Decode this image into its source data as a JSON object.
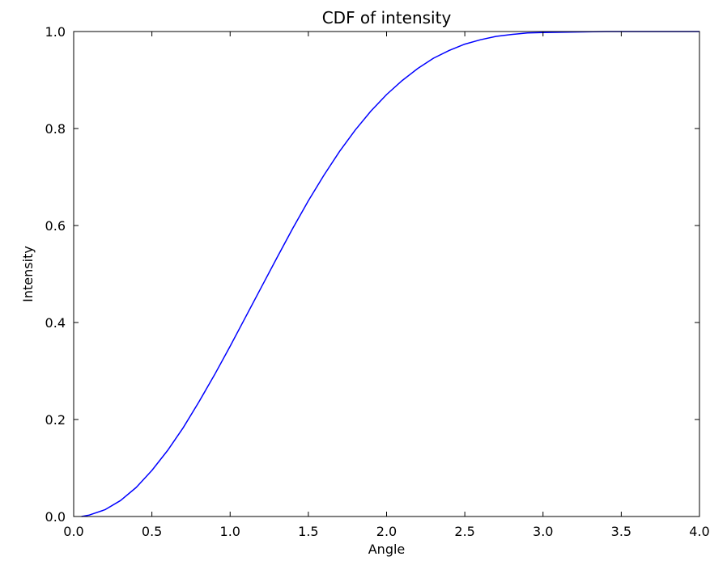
{
  "chart_data": {
    "type": "line",
    "title": "CDF of intensity",
    "xlabel": "Angle",
    "ylabel": "Intensity",
    "xlim": [
      0.0,
      4.0
    ],
    "ylim": [
      0.0,
      1.0
    ],
    "grid": false,
    "x_ticks": [
      "0.0",
      "0.5",
      "1.0",
      "1.5",
      "2.0",
      "2.5",
      "3.0",
      "3.5",
      "4.0"
    ],
    "y_ticks": [
      "0.0",
      "0.2",
      "0.4",
      "0.6",
      "0.8",
      "1.0"
    ],
    "line_color": "#0000ff",
    "series": [
      {
        "x": [
          0.05,
          0.1,
          0.2,
          0.3,
          0.4,
          0.5,
          0.6,
          0.7,
          0.8,
          0.9,
          1.0,
          1.1,
          1.2,
          1.3,
          1.4,
          1.5,
          1.6,
          1.7,
          1.8,
          1.9,
          2.0,
          2.1,
          2.2,
          2.3,
          2.4,
          2.5,
          2.6,
          2.7,
          2.8,
          2.9,
          3.0,
          3.2,
          3.4,
          3.6,
          3.8,
          4.0
        ],
        "y": [
          0.0,
          0.003,
          0.014,
          0.033,
          0.06,
          0.095,
          0.136,
          0.183,
          0.236,
          0.292,
          0.351,
          0.412,
          0.473,
          0.534,
          0.594,
          0.651,
          0.704,
          0.753,
          0.797,
          0.836,
          0.87,
          0.899,
          0.924,
          0.945,
          0.961,
          0.974,
          0.983,
          0.99,
          0.994,
          0.997,
          0.998,
          0.999,
          1.0,
          1.0,
          1.0,
          1.0
        ]
      }
    ]
  }
}
